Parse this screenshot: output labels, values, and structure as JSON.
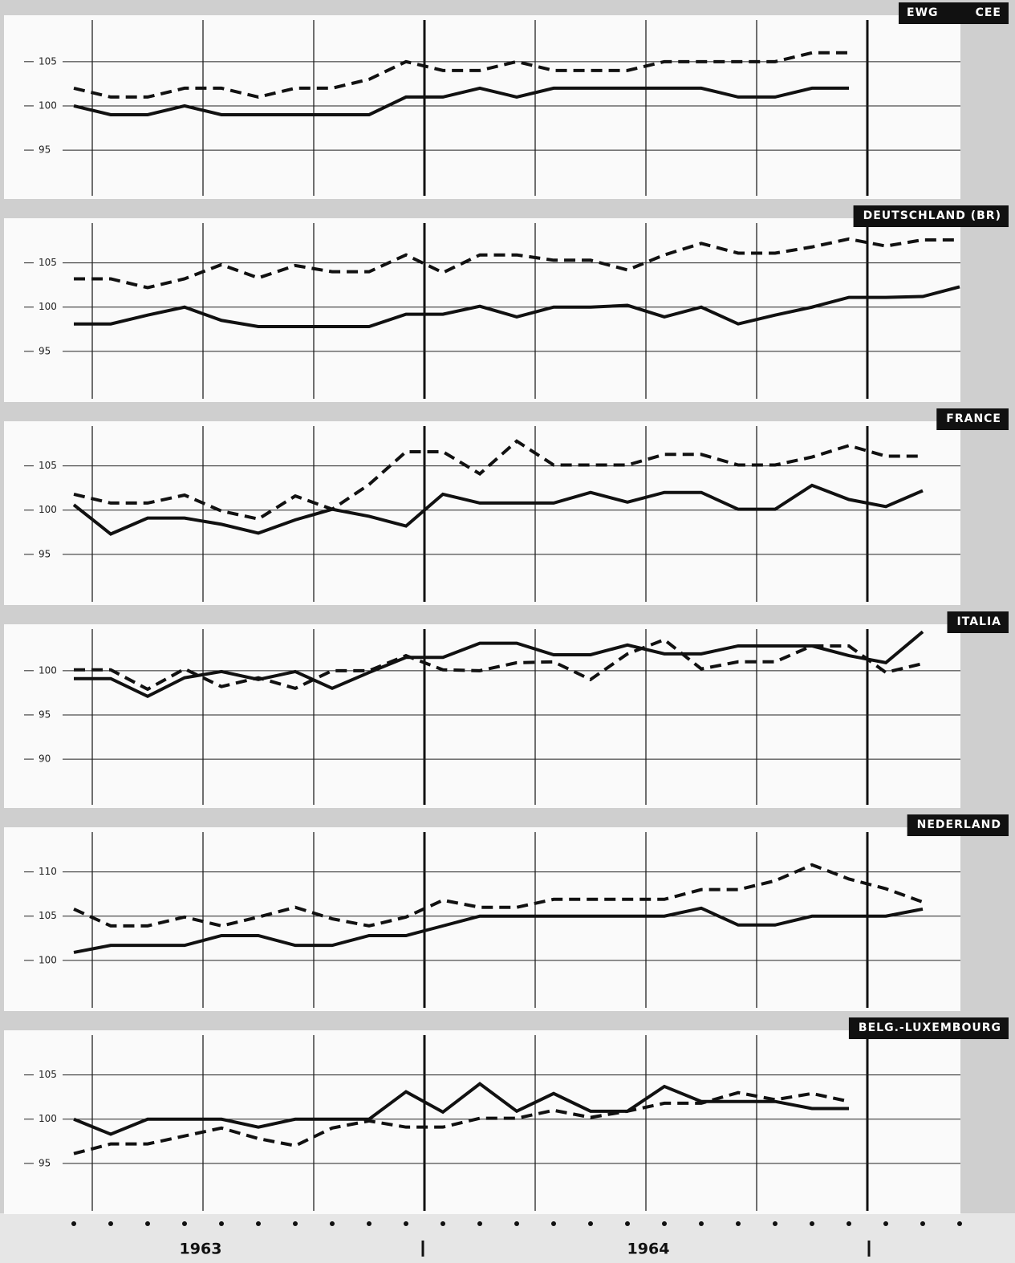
{
  "chart_data": [
    {
      "type": "line",
      "title": "EWG",
      "title_2": "CEE",
      "ylim": [
        90.2,
        109.7
      ],
      "yticks": [
        95,
        100,
        105
      ],
      "series": [
        {
          "color": "#111111",
          "dash": false,
          "values": [
            100,
            99,
            99,
            100,
            99,
            99,
            99,
            99,
            99,
            101,
            101,
            102,
            101,
            102,
            102,
            102,
            102,
            102,
            101,
            101,
            102,
            102,
            null,
            null,
            null
          ]
        },
        {
          "color": "#111111",
          "dash": true,
          "values": [
            102,
            101,
            101,
            102,
            102,
            101,
            102,
            102,
            103,
            105,
            104,
            104,
            105,
            104,
            104,
            104,
            105,
            105,
            105,
            105,
            106,
            106,
            null,
            null,
            null
          ]
        }
      ]
    },
    {
      "type": "line",
      "title": "DEUTSCHLAND (BR)",
      "ylim": [
        90.0,
        109.5
      ],
      "yticks": [
        95,
        100,
        105
      ],
      "series": [
        {
          "color": "#111111",
          "dash": false,
          "values": [
            98.1,
            98.1,
            99.1,
            100,
            98.5,
            97.8,
            97.8,
            97.8,
            97.8,
            99.2,
            99.2,
            100.1,
            98.9,
            100,
            100,
            100.2,
            98.9,
            100,
            98.1,
            99.1,
            100,
            101.1,
            101.1,
            101.2,
            102.3
          ]
        },
        {
          "color": "#111111",
          "dash": true,
          "values": [
            103.2,
            103.2,
            102.2,
            103.2,
            104.8,
            103.3,
            104.7,
            104,
            104,
            105.9,
            103.9,
            105.9,
            105.9,
            105.3,
            105.3,
            104.2,
            105.9,
            107.2,
            106.1,
            106.1,
            106.8,
            107.7,
            106.9,
            107.6,
            107.6
          ]
        }
      ]
    },
    {
      "type": "line",
      "title": "FRANCE",
      "ylim": [
        90.0,
        109.5
      ],
      "yticks": [
        95,
        100,
        105
      ],
      "series": [
        {
          "color": "#111111",
          "dash": false,
          "values": [
            100.6,
            97.3,
            99.1,
            99.1,
            98.4,
            97.4,
            98.9,
            100.1,
            99.3,
            98.2,
            101.8,
            100.8,
            100.8,
            100.8,
            102,
            100.9,
            102,
            102,
            100.1,
            100.1,
            102.8,
            101.2,
            100.4,
            102.2,
            null
          ]
        },
        {
          "color": "#111111",
          "dash": true,
          "values": [
            101.8,
            100.8,
            100.8,
            101.7,
            99.9,
            99,
            101.6,
            100.1,
            102.9,
            106.6,
            106.6,
            104.1,
            107.8,
            105.1,
            105.1,
            105.1,
            106.3,
            106.3,
            105.1,
            105.1,
            106,
            107.3,
            106.1,
            106.1,
            null
          ]
        }
      ]
    },
    {
      "type": "line",
      "title": "ITALIA",
      "ylim": [
        85.2,
        104.7
      ],
      "yticks": [
        90,
        95,
        100
      ],
      "series": [
        {
          "color": "#111111",
          "dash": false,
          "values": [
            99.1,
            99.1,
            97.1,
            99.2,
            99.9,
            99,
            99.9,
            98,
            99.8,
            101.5,
            101.5,
            103.1,
            103.1,
            101.8,
            101.8,
            102.9,
            101.9,
            101.9,
            102.8,
            102.8,
            102.8,
            101.7,
            100.9,
            104.4,
            null
          ]
        },
        {
          "color": "#111111",
          "dash": true,
          "values": [
            100.1,
            100.1,
            97.9,
            100.2,
            98.2,
            99.2,
            98,
            100,
            100,
            101.7,
            100.1,
            100,
            100.9,
            101,
            99,
            101.9,
            103.5,
            100.2,
            101,
            101,
            102.8,
            102.8,
            99.8,
            100.8,
            null
          ]
        }
      ]
    },
    {
      "type": "line",
      "title": "NEDERLAND",
      "ylim": [
        95.0,
        114.5
      ],
      "yticks": [
        100,
        105,
        110
      ],
      "series": [
        {
          "color": "#111111",
          "dash": false,
          "values": [
            100.9,
            101.7,
            101.7,
            101.7,
            102.8,
            102.8,
            101.7,
            101.7,
            102.8,
            102.8,
            103.9,
            105,
            105,
            105,
            105,
            105,
            105,
            105.9,
            104,
            104,
            105,
            105,
            105,
            105.8,
            null
          ]
        },
        {
          "color": "#111111",
          "dash": true,
          "values": [
            105.8,
            103.9,
            103.9,
            104.9,
            103.9,
            104.9,
            106,
            104.7,
            103.9,
            104.9,
            106.8,
            106,
            106,
            106.9,
            106.9,
            106.9,
            106.9,
            108,
            108,
            109,
            110.8,
            109.2,
            108.1,
            106.6,
            null
          ]
        }
      ]
    },
    {
      "type": "line",
      "title": "BELG.-LUXEMBOURG",
      "ylim": [
        90.0,
        109.5
      ],
      "yticks": [
        95,
        100,
        105
      ],
      "series": [
        {
          "color": "#111111",
          "dash": false,
          "values": [
            100,
            98.3,
            100,
            100,
            100,
            99.1,
            100,
            100,
            100,
            103.1,
            100.8,
            104,
            100.9,
            102.9,
            100.9,
            100.9,
            103.7,
            102,
            102,
            102,
            101.2,
            101.2,
            null,
            null,
            null
          ]
        },
        {
          "color": "#111111",
          "dash": true,
          "values": [
            96.1,
            97.2,
            97.2,
            98.1,
            99,
            97.8,
            97,
            99,
            99.8,
            99.1,
            99.1,
            100.1,
            100.1,
            101,
            100.2,
            100.9,
            101.8,
            101.8,
            103,
            102.2,
            102.9,
            102,
            null,
            null,
            null
          ]
        }
      ]
    }
  ],
  "year_labels": [
    "1963",
    "1964"
  ]
}
